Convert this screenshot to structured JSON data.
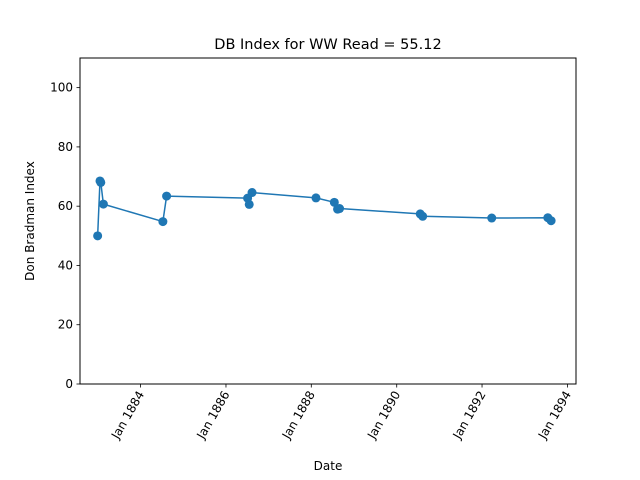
{
  "chart_data": {
    "type": "line",
    "title": "DB Index for WW Read = 55.12",
    "xlabel": "Date",
    "ylabel": "Don Bradman Index",
    "ylim": [
      0,
      110
    ],
    "xlim": [
      "1882-08-01",
      "1894-03-15"
    ],
    "yticks": [
      0,
      20,
      40,
      60,
      80,
      100
    ],
    "xticks": [
      {
        "date": "1884-01-01",
        "label": "Jan 1884"
      },
      {
        "date": "1886-01-01",
        "label": "Jan 1886"
      },
      {
        "date": "1888-01-01",
        "label": "Jan 1888"
      },
      {
        "date": "1890-01-01",
        "label": "Jan 1890"
      },
      {
        "date": "1892-01-01",
        "label": "Jan 1892"
      },
      {
        "date": "1894-01-01",
        "label": "Jan 1894"
      }
    ],
    "grid": false,
    "color": "#1f77b4",
    "series": [
      {
        "points": [
          {
            "date": "1882-12-30",
            "value": 50.0
          },
          {
            "date": "1883-01-19",
            "value": 68.5
          },
          {
            "date": "1883-01-26",
            "value": 68.0
          },
          {
            "date": "1883-02-17",
            "value": 60.7
          },
          {
            "date": "1884-07-10",
            "value": 54.8
          },
          {
            "date": "1884-08-11",
            "value": 63.4
          },
          {
            "date": "1886-07-05",
            "value": 62.7
          },
          {
            "date": "1886-07-19",
            "value": 60.6
          },
          {
            "date": "1886-08-12",
            "value": 64.6
          },
          {
            "date": "1888-02-10",
            "value": 62.8
          },
          {
            "date": "1888-07-16",
            "value": 61.3
          },
          {
            "date": "1888-08-13",
            "value": 59.0
          },
          {
            "date": "1888-08-30",
            "value": 59.2
          },
          {
            "date": "1890-07-21",
            "value": 57.4
          },
          {
            "date": "1890-08-11",
            "value": 56.6
          },
          {
            "date": "1892-03-24",
            "value": 56.0
          },
          {
            "date": "1893-07-17",
            "value": 56.1
          },
          {
            "date": "1893-08-14",
            "value": 55.1
          }
        ]
      }
    ]
  }
}
